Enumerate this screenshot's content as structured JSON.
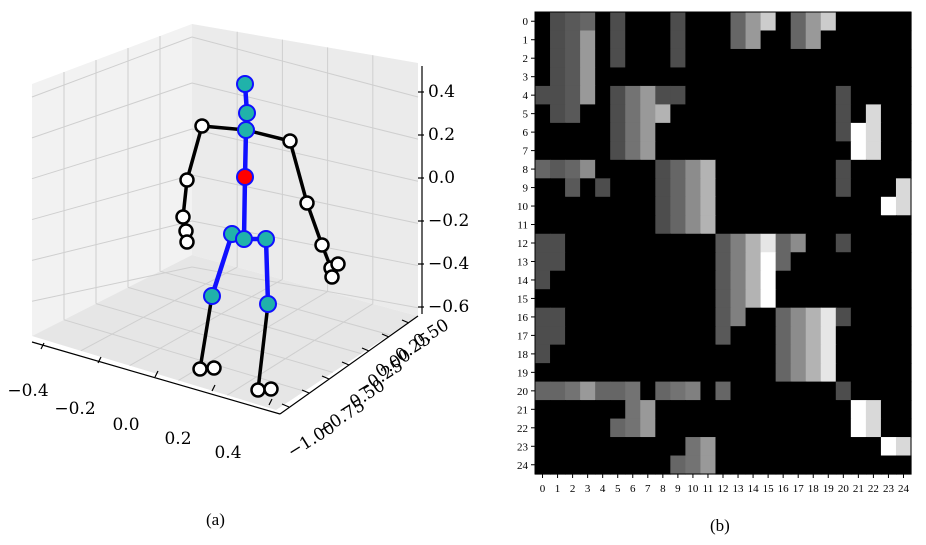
{
  "captions": {
    "left": "(a)",
    "right": "(b)"
  },
  "chart_data": [
    {
      "type": "scatter",
      "projection": "3d",
      "grid": true,
      "x_ticks": [
        "−0.4",
        "−0.2",
        "0.0",
        "0.2",
        "0.4"
      ],
      "y_ticks": [
        "−1.00",
        "−0.75",
        "−0.50",
        "−0.25",
        "0.00",
        "0.25",
        "0.50"
      ],
      "z_ticks": [
        "0.4",
        "0.2",
        "0.0",
        "−0.2",
        "−0.4",
        "−0.6"
      ],
      "zlim": [
        -0.6,
        0.4
      ],
      "colors": {
        "spine": "#1010ff",
        "spine_joint": "#20b2aa",
        "root_joint": "#ff0000",
        "limb": "#000000",
        "limb_joint": "#ffffff"
      }
    },
    {
      "type": "heatmap",
      "colormap": "gray",
      "value_range": [
        0,
        1
      ],
      "x_ticks": [
        "0",
        "1",
        "2",
        "3",
        "4",
        "5",
        "6",
        "7",
        "8",
        "9",
        "10",
        "11",
        "12",
        "13",
        "14",
        "15",
        "16",
        "17",
        "18",
        "19",
        "20",
        "21",
        "22",
        "23",
        "24"
      ],
      "y_ticks": [
        "0",
        "1",
        "2",
        "3",
        "4",
        "5",
        "6",
        "7",
        "8",
        "9",
        "10",
        "11",
        "12",
        "13",
        "14",
        "15",
        "16",
        "17",
        "18",
        "19",
        "20",
        "21",
        "22",
        "23",
        "24"
      ],
      "matrix": [
        [
          0,
          0.3,
          0.35,
          0.4,
          0,
          0.3,
          0,
          0,
          0,
          0.3,
          0,
          0,
          0,
          0.4,
          0.6,
          0.8,
          0,
          0.4,
          0.6,
          0.8,
          0,
          0,
          0,
          0,
          0
        ],
        [
          0,
          0.3,
          0.35,
          0.6,
          0,
          0.3,
          0,
          0,
          0,
          0.3,
          0,
          0,
          0,
          0.4,
          0.6,
          0,
          0,
          0.4,
          0.6,
          0,
          0,
          0,
          0,
          0,
          0
        ],
        [
          0,
          0.3,
          0.35,
          0.6,
          0,
          0.3,
          0,
          0,
          0,
          0.3,
          0,
          0,
          0,
          0,
          0,
          0,
          0,
          0,
          0,
          0,
          0,
          0,
          0,
          0,
          0
        ],
        [
          0,
          0.3,
          0.35,
          0.6,
          0,
          0,
          0,
          0,
          0,
          0,
          0,
          0,
          0,
          0,
          0,
          0,
          0,
          0,
          0,
          0,
          0,
          0,
          0,
          0,
          0
        ],
        [
          0.3,
          0.3,
          0.35,
          0.6,
          0,
          0.3,
          0.45,
          0.6,
          0.3,
          0.3,
          0,
          0,
          0,
          0,
          0,
          0,
          0,
          0,
          0,
          0,
          0.3,
          0,
          0,
          0,
          0
        ],
        [
          0,
          0.3,
          0.35,
          0,
          0,
          0.3,
          0.45,
          0.6,
          0.7,
          0,
          0,
          0,
          0,
          0,
          0,
          0,
          0,
          0,
          0,
          0,
          0.3,
          0,
          0.85,
          0,
          0
        ],
        [
          0,
          0,
          0,
          0,
          0,
          0.3,
          0.45,
          0.6,
          0,
          0,
          0,
          0,
          0,
          0,
          0,
          0,
          0,
          0,
          0,
          0,
          0.3,
          1.0,
          0.85,
          0,
          0
        ],
        [
          0,
          0,
          0,
          0,
          0,
          0.3,
          0.45,
          0.6,
          0,
          0,
          0,
          0,
          0,
          0,
          0,
          0,
          0,
          0,
          0,
          0,
          0,
          1.0,
          0.85,
          0,
          0
        ],
        [
          0.4,
          0.35,
          0.4,
          0.55,
          0,
          0,
          0,
          0,
          0.3,
          0.4,
          0.55,
          0.7,
          0,
          0,
          0,
          0,
          0,
          0,
          0,
          0,
          0.3,
          0,
          0,
          0,
          0
        ],
        [
          0,
          0,
          0.35,
          0,
          0.3,
          0,
          0,
          0,
          0.3,
          0.4,
          0.55,
          0.7,
          0,
          0,
          0,
          0,
          0,
          0,
          0,
          0,
          0.3,
          0,
          0,
          0,
          0.85
        ],
        [
          0,
          0,
          0,
          0,
          0,
          0,
          0,
          0,
          0.3,
          0.4,
          0.55,
          0.7,
          0,
          0,
          0,
          0,
          0,
          0,
          0,
          0,
          0,
          0,
          0,
          1.0,
          0.85
        ],
        [
          0,
          0,
          0,
          0,
          0,
          0,
          0,
          0,
          0.3,
          0.4,
          0.55,
          0.7,
          0,
          0,
          0,
          0,
          0,
          0,
          0,
          0,
          0,
          0,
          0,
          0,
          0
        ],
        [
          0.3,
          0.3,
          0,
          0,
          0,
          0,
          0,
          0,
          0,
          0,
          0,
          0,
          0.35,
          0.5,
          0.7,
          0.9,
          0.4,
          0.55,
          0,
          0,
          0.3,
          0,
          0,
          0,
          0
        ],
        [
          0.3,
          0.3,
          0,
          0,
          0,
          0,
          0,
          0,
          0,
          0,
          0,
          0,
          0.35,
          0.5,
          0.7,
          1.0,
          0.4,
          0,
          0,
          0,
          0,
          0,
          0,
          0,
          0
        ],
        [
          0.3,
          0,
          0,
          0,
          0,
          0,
          0,
          0,
          0,
          0,
          0,
          0,
          0.35,
          0.5,
          0.7,
          1.0,
          0,
          0,
          0,
          0,
          0,
          0,
          0,
          0,
          0
        ],
        [
          0,
          0,
          0,
          0,
          0,
          0,
          0,
          0,
          0,
          0,
          0,
          0,
          0.35,
          0.5,
          0.7,
          1.0,
          0,
          0,
          0,
          0,
          0,
          0,
          0,
          0,
          0
        ],
        [
          0.3,
          0.3,
          0,
          0,
          0,
          0,
          0,
          0,
          0,
          0,
          0,
          0,
          0.35,
          0.5,
          0,
          0,
          0.4,
          0.55,
          0.7,
          0.9,
          0.3,
          0,
          0,
          0,
          0
        ],
        [
          0.3,
          0.3,
          0,
          0,
          0,
          0,
          0,
          0,
          0,
          0,
          0,
          0,
          0.35,
          0,
          0,
          0,
          0.4,
          0.55,
          0.7,
          0.9,
          0,
          0,
          0,
          0,
          0
        ],
        [
          0.3,
          0,
          0,
          0,
          0,
          0,
          0,
          0,
          0,
          0,
          0,
          0,
          0,
          0,
          0,
          0,
          0.4,
          0.55,
          0.7,
          0.9,
          0,
          0,
          0,
          0,
          0
        ],
        [
          0,
          0,
          0,
          0,
          0,
          0,
          0,
          0,
          0,
          0,
          0,
          0,
          0,
          0,
          0,
          0,
          0.4,
          0.55,
          0.7,
          0.9,
          0,
          0,
          0,
          0,
          0
        ],
        [
          0.4,
          0.4,
          0.45,
          0.6,
          0.4,
          0.4,
          0.45,
          0,
          0.4,
          0.45,
          0.5,
          0,
          0.4,
          0,
          0,
          0,
          0,
          0,
          0,
          0,
          0.3,
          0,
          0,
          0,
          0
        ],
        [
          0,
          0,
          0,
          0,
          0,
          0,
          0.45,
          0.6,
          0,
          0,
          0,
          0,
          0,
          0,
          0,
          0,
          0,
          0,
          0,
          0,
          0,
          1.0,
          0.85,
          0,
          0
        ],
        [
          0,
          0,
          0,
          0,
          0,
          0.4,
          0.45,
          0.6,
          0,
          0,
          0,
          0,
          0,
          0,
          0,
          0,
          0,
          0,
          0,
          0,
          0,
          1.0,
          0.85,
          0,
          0
        ],
        [
          0,
          0,
          0,
          0,
          0,
          0,
          0,
          0,
          0,
          0,
          0.45,
          0.6,
          0,
          0,
          0,
          0,
          0,
          0,
          0,
          0,
          0,
          0,
          0,
          1.0,
          0.85
        ],
        [
          0,
          0,
          0,
          0,
          0,
          0,
          0,
          0,
          0,
          0.4,
          0.45,
          0.6,
          0,
          0,
          0,
          0,
          0,
          0,
          0,
          0,
          0,
          0,
          0,
          0,
          0
        ]
      ]
    }
  ]
}
